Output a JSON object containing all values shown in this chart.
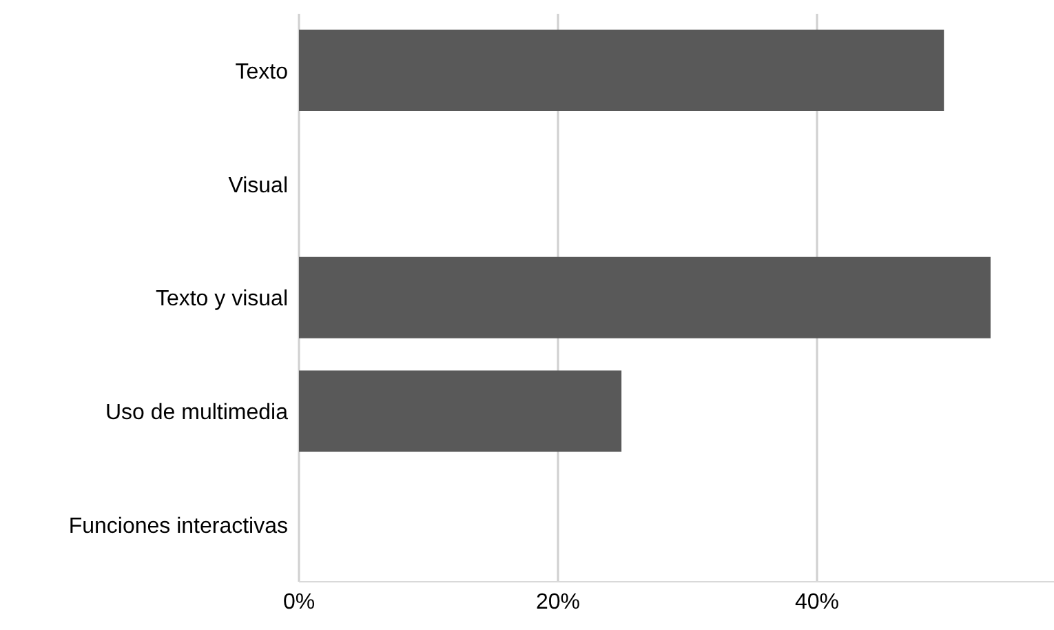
{
  "chart_data": {
    "type": "bar",
    "orientation": "horizontal",
    "categories": [
      "Texto",
      "Visual",
      "Texto y visual",
      "Uso de multimedia",
      "Funciones interactivas"
    ],
    "values": [
      49.8,
      0,
      53.4,
      24.9,
      0
    ],
    "color": "#595959",
    "xlim": [
      0,
      60
    ],
    "xticks": [
      {
        "value": 0,
        "label": "0%"
      },
      {
        "value": 20,
        "label": "20%"
      },
      {
        "value": 40,
        "label": "40%"
      }
    ],
    "grid": "x"
  }
}
